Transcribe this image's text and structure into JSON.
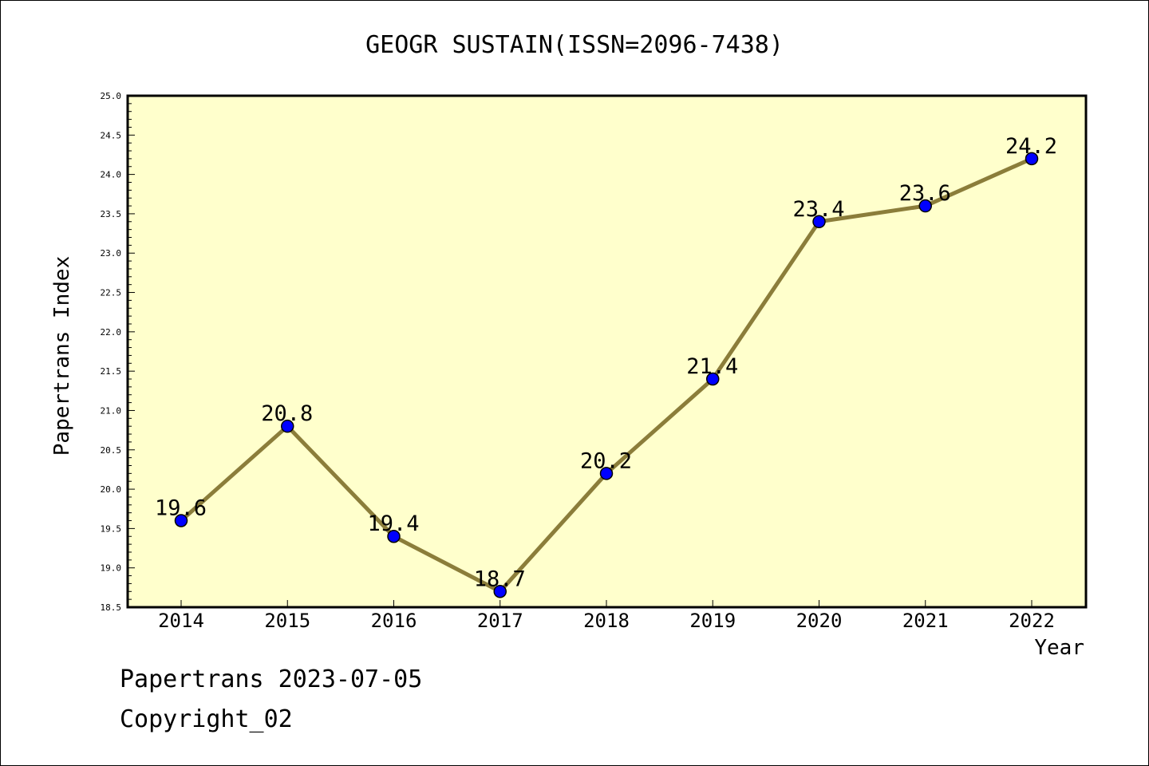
{
  "chart_data": {
    "type": "line",
    "title": "GEOGR SUSTAIN(ISSN=2096-7438)",
    "xlabel": "Year",
    "ylabel": "Papertrans Index",
    "categories": [
      "2014",
      "2015",
      "2016",
      "2017",
      "2018",
      "2019",
      "2020",
      "2021",
      "2022"
    ],
    "series": [
      {
        "values": [
          19.6,
          20.8,
          19.4,
          18.7,
          20.2,
          21.4,
          23.4,
          23.6,
          24.2
        ]
      }
    ],
    "data_labels": [
      "19.6",
      "20.8",
      "19.4",
      "18.7",
      "20.2",
      "21.4",
      "23.4",
      "23.6",
      "24.2"
    ],
    "ylim": [
      18.5,
      25.0
    ],
    "y_ticks": [
      "18.5",
      "19.0",
      "19.5",
      "20.0",
      "20.5",
      "21.0",
      "21.5",
      "22.0",
      "22.5",
      "23.0",
      "23.5",
      "24.0",
      "24.5",
      "25.0"
    ],
    "grid": false,
    "colors": {
      "plot_background": "#ffffcc",
      "line": "#8b7d3a",
      "marker": "#0000ff"
    }
  },
  "footer": {
    "line1": "Papertrans 2023-07-05",
    "line2": "Copyright_02"
  }
}
